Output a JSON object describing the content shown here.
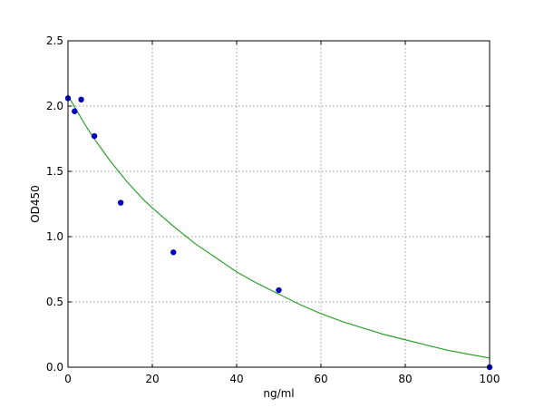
{
  "chart_data": {
    "type": "scatter",
    "title": "",
    "xlabel": "ng/ml",
    "ylabel": "OD450",
    "xlim": [
      0,
      100
    ],
    "ylim": [
      0,
      2.5
    ],
    "xticks": [
      0,
      20,
      40,
      60,
      80,
      100
    ],
    "yticks": [
      0.0,
      0.5,
      1.0,
      1.5,
      2.0,
      2.5
    ],
    "xtick_labels": [
      "0",
      "20",
      "40",
      "60",
      "80",
      "100"
    ],
    "ytick_labels": [
      "0.0",
      "0.5",
      "1.0",
      "1.5",
      "2.0",
      "2.5"
    ],
    "grid": true,
    "series": [
      {
        "kind": "points",
        "color": "#0000bf",
        "x": [
          0,
          1.56,
          3.13,
          6.25,
          12.5,
          25,
          50,
          100
        ],
        "y": [
          2.06,
          1.96,
          2.05,
          1.77,
          1.26,
          0.88,
          0.59,
          0.0
        ]
      },
      {
        "kind": "fit-curve",
        "color": "#2ca02c",
        "x": [
          0,
          2,
          4,
          6,
          8,
          10,
          12,
          14,
          16,
          18,
          20,
          25,
          30,
          35,
          40,
          45,
          50,
          55,
          60,
          65,
          70,
          75,
          80,
          85,
          90,
          95,
          100
        ],
        "y": [
          2.08,
          1.97,
          1.86,
          1.76,
          1.67,
          1.58,
          1.5,
          1.42,
          1.35,
          1.28,
          1.22,
          1.08,
          0.95,
          0.84,
          0.73,
          0.64,
          0.56,
          0.48,
          0.41,
          0.35,
          0.3,
          0.25,
          0.21,
          0.17,
          0.13,
          0.1,
          0.07
        ]
      }
    ]
  }
}
